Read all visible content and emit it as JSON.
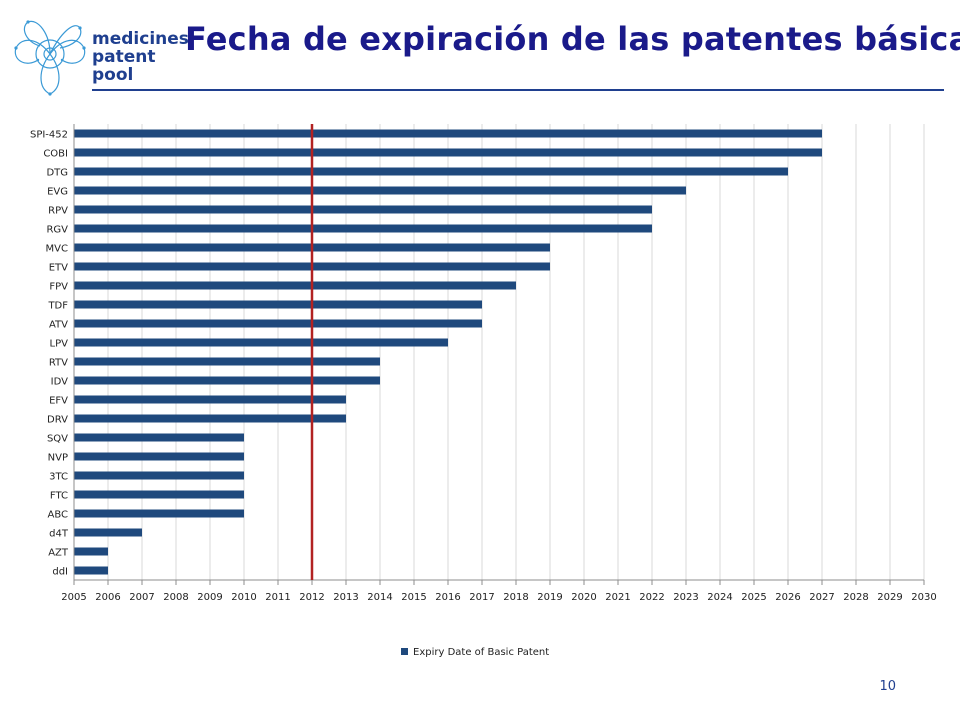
{
  "header": {
    "logo_lines": [
      "medicines",
      "patent",
      "pool"
    ],
    "title": "Fecha de expiración de las patentes básicas"
  },
  "chart_data": {
    "type": "bar",
    "orientation": "horizontal",
    "categories": [
      "SPI-452",
      "COBI",
      "DTG",
      "EVG",
      "RPV",
      "RGV",
      "MVC",
      "ETV",
      "FPV",
      "TDF",
      "ATV",
      "LPV",
      "RTV",
      "IDV",
      "EFV",
      "DRV",
      "SQV",
      "NVP",
      "3TC",
      "FTC",
      "ABC",
      "d4T",
      "AZT",
      "ddI"
    ],
    "series": [
      {
        "name": "Expiry Date of Basic Patent",
        "values": [
          2027,
          2027,
          2026,
          2023,
          2022,
          2022,
          2019,
          2019,
          2018,
          2017,
          2017,
          2016,
          2014,
          2014,
          2013,
          2013,
          2010,
          2010,
          2010,
          2010,
          2010,
          2007,
          2006,
          2006
        ]
      }
    ],
    "xlim": [
      2005,
      2030
    ],
    "xticks": [
      "2005",
      "2006",
      "2007",
      "2008",
      "2009",
      "2010",
      "2011",
      "2012",
      "2013",
      "2014",
      "2015",
      "2016",
      "2017",
      "2018",
      "2019",
      "2020",
      "2021",
      "2022",
      "2023",
      "2024",
      "2025",
      "2026",
      "2027",
      "2028",
      "2029",
      "2030"
    ],
    "reference_line": 2012,
    "grid": "vertical",
    "legend_position": "bottom",
    "colors": {
      "bar": "#1f497d",
      "reference_line": "#b22222",
      "grid": "#d9d9d9",
      "title": "#1a1a8a"
    }
  },
  "footer": {
    "page_number": "10"
  }
}
